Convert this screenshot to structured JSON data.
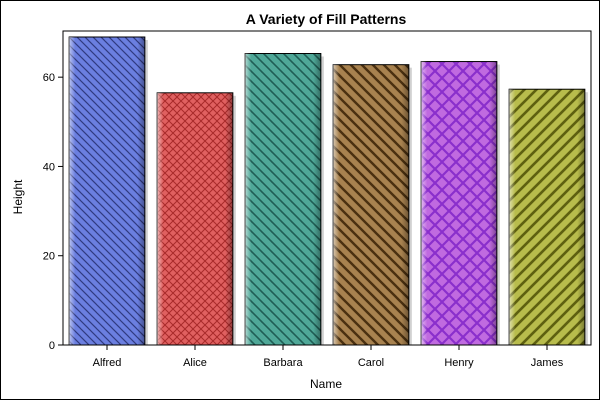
{
  "chart_data": {
    "type": "bar",
    "title": "A Variety of Fill Patterns",
    "xlabel": "Name",
    "ylabel": "Height",
    "categories": [
      "Alfred",
      "Alice",
      "Barbara",
      "Carol",
      "Henry",
      "James"
    ],
    "values": [
      69.0,
      56.5,
      65.3,
      62.8,
      63.5,
      57.3
    ],
    "ylim": [
      0,
      69
    ],
    "yticks": [
      0,
      20,
      40,
      60
    ],
    "grid": false,
    "legend": "none",
    "bar_colors": [
      "#6b7fe0",
      "#e06060",
      "#4fa898",
      "#a8824f",
      "#c06ae0",
      "#b8bc4c"
    ],
    "pattern_colors": [
      "#303a80",
      "#a82a2a",
      "#1f5e55",
      "#4a3010",
      "#8a2fcc",
      "#5e6010"
    ],
    "patterns": [
      "diag-down-fine",
      "crosshatch",
      "diag-down-medium",
      "diag-down-thick",
      "crosshatch-wide",
      "diag-up-thick"
    ]
  }
}
